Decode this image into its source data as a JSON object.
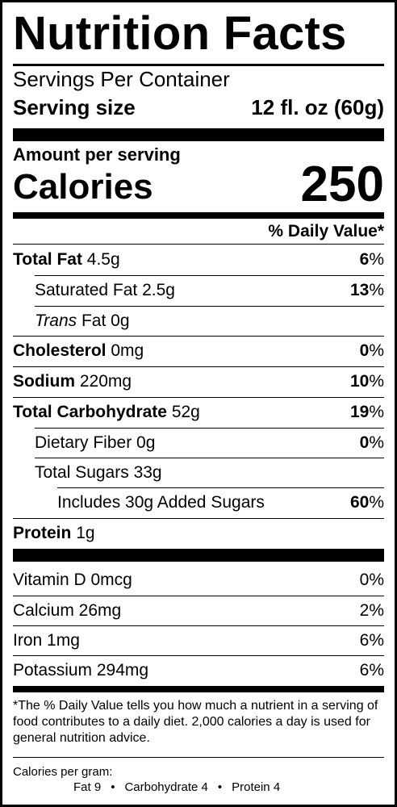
{
  "title": "Nutrition Facts",
  "servings_per_container": "Servings Per Container",
  "serving_size": {
    "label": "Serving size",
    "value": "12 fl. oz (60g)"
  },
  "amount_per_serving": "Amount per serving",
  "calories": {
    "label": "Calories",
    "value": "250"
  },
  "daily_value_header": "% Daily Value*",
  "nutrients": [
    {
      "name": "Total Fat",
      "amount": "4.5g",
      "dv": "6",
      "pct_sign": "%"
    },
    {
      "name": "Saturated Fat",
      "amount": "2.5g",
      "dv": "13",
      "pct_sign": "%"
    },
    {
      "name_italic": "Trans",
      "name": "Fat",
      "amount": "0g"
    },
    {
      "name": "Cholesterol",
      "amount": "0mg",
      "dv": "0",
      "pct_sign": "%"
    },
    {
      "name": "Sodium",
      "amount": "220mg",
      "dv": "10",
      "pct_sign": "%"
    },
    {
      "name": "Total Carbohydrate",
      "amount": "52g",
      "dv": "19",
      "pct_sign": "%"
    },
    {
      "name": "Dietary Fiber",
      "amount": "0g",
      "dv": "0",
      "pct_sign": "%"
    },
    {
      "name": "Total Sugars",
      "amount": "33g"
    },
    {
      "name": "Includes 30g Added Sugars",
      "dv": "60",
      "pct_sign": "%"
    },
    {
      "name": "Protein",
      "amount": "1g"
    }
  ],
  "vitamins": [
    {
      "name": "Vitamin D 0mcg",
      "dv": "0%"
    },
    {
      "name": "Calcium 26mg",
      "dv": "2%"
    },
    {
      "name": "Iron 1mg",
      "dv": "6%"
    },
    {
      "name": "Potassium 294mg",
      "dv": "6%"
    }
  ],
  "footnote": "*The % Daily Value tells you how much a nutrient in a serving of food contributes to a daily diet. 2,000 calories a day is used for general nutrition advice.",
  "calories_per_gram": {
    "label": "Calories per gram:",
    "fat": "Fat 9",
    "separator": "•",
    "carbohydrate": "Carbohydrate 4",
    "protein": "Protein 4"
  }
}
